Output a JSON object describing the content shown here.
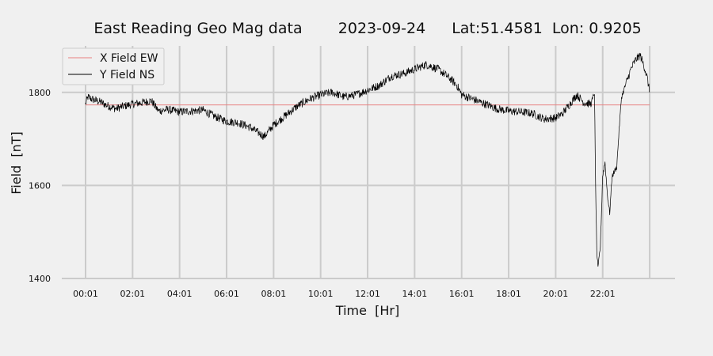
{
  "chart_data": {
    "type": "line",
    "title": "East Reading Geo Mag data",
    "date": "2023-09-24",
    "location": "Lat:51.4581  Lon: 0.9205",
    "xlabel": "Time  [Hr]",
    "ylabel": "Field  [nT]",
    "x_ticks": [
      "00:01",
      "02:01",
      "04:01",
      "06:01",
      "08:01",
      "10:01",
      "12:01",
      "14:01",
      "16:01",
      "18:01",
      "20:01",
      "22:01"
    ],
    "y_ticks": [
      1400,
      1600,
      1800
    ],
    "ylim": [
      1400,
      1900
    ],
    "xlim_hours": [
      0,
      24
    ],
    "grid": true,
    "legend_position": "top-left",
    "series": [
      {
        "name": "X Field EW",
        "color": "#e88080",
        "x": [
          0,
          24
        ],
        "y": [
          1773,
          1773
        ]
      },
      {
        "name": "Y Field NS",
        "color": "#000000",
        "x": [
          0,
          0.1,
          0.3,
          0.6,
          1.0,
          1.3,
          1.6,
          2.0,
          2.4,
          2.8,
          3.1,
          3.5,
          4.0,
          4.5,
          5.0,
          5.5,
          6.0,
          6.5,
          7.0,
          7.3,
          7.6,
          8.0,
          8.5,
          9.0,
          9.5,
          10.0,
          10.5,
          11.0,
          11.5,
          12.0,
          12.5,
          13.0,
          13.5,
          14.0,
          14.5,
          15.0,
          15.5,
          15.8,
          16.0,
          16.5,
          17.0,
          17.5,
          18.0,
          18.5,
          19.0,
          19.5,
          20.0,
          20.3,
          20.6,
          20.9,
          21.2,
          21.5,
          21.65,
          21.7,
          21.75,
          21.8,
          21.9,
          22.0,
          22.1,
          22.2,
          22.3,
          22.4,
          22.5,
          22.6,
          22.7,
          22.8,
          23.0,
          23.2,
          23.4,
          23.6,
          23.8,
          23.9,
          24.0
        ],
        "y": [
          1775,
          1790,
          1785,
          1780,
          1770,
          1765,
          1770,
          1775,
          1778,
          1782,
          1760,
          1763,
          1758,
          1760,
          1762,
          1748,
          1738,
          1735,
          1725,
          1715,
          1705,
          1730,
          1750,
          1770,
          1785,
          1795,
          1800,
          1790,
          1795,
          1805,
          1815,
          1835,
          1840,
          1850,
          1860,
          1850,
          1830,
          1815,
          1795,
          1785,
          1775,
          1765,
          1760,
          1758,
          1755,
          1743,
          1745,
          1755,
          1775,
          1795,
          1778,
          1775,
          1800,
          1600,
          1460,
          1420,
          1470,
          1620,
          1650,
          1580,
          1540,
          1620,
          1630,
          1640,
          1720,
          1790,
          1820,
          1850,
          1870,
          1880,
          1850,
          1830,
          1800
        ]
      }
    ]
  }
}
